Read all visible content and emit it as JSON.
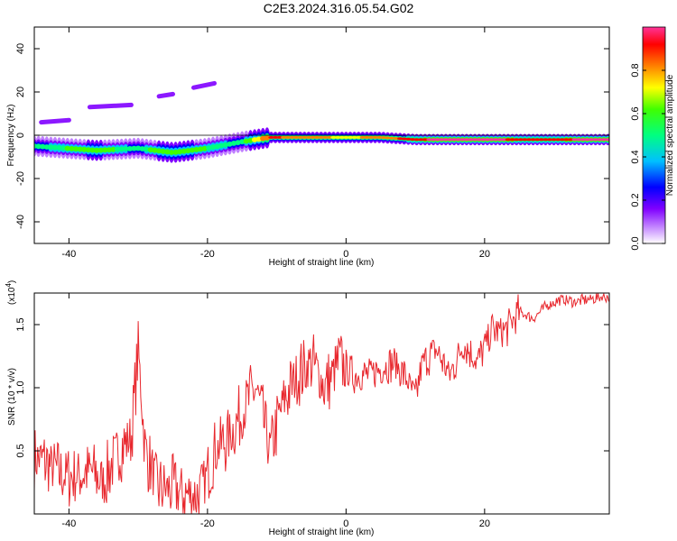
{
  "title": "C2E3.2024.316.05.54.G02",
  "chart_data": [
    {
      "type": "heatmap",
      "xlabel": "Height of straight line (km)",
      "ylabel": "Frequency (Hz)",
      "xlim": [
        -45,
        38
      ],
      "ylim": [
        -50,
        50
      ],
      "xticks": [
        -40,
        -20,
        0,
        20
      ],
      "yticks": [
        40,
        20,
        0,
        -20,
        -40
      ],
      "colorbar": {
        "label": "Normalized spectral amplitude",
        "range": [
          0,
          1
        ],
        "ticks": [
          "0.0",
          "0.2",
          "0.4",
          "0.6",
          "0.8"
        ],
        "colors": [
          "#ffffff",
          "#a020f0",
          "#0000ff",
          "#00ffff",
          "#00ff00",
          "#ffff00",
          "#ffa500",
          "#ff0000",
          "#ff3399"
        ]
      },
      "ridge": {
        "x": [
          -45,
          -36,
          -30,
          -25,
          -20,
          -15,
          -11,
          -5,
          0,
          5,
          10,
          15,
          20,
          25,
          30,
          37
        ],
        "frequency": [
          -5,
          -7,
          -6,
          -8,
          -6,
          -3,
          -1,
          -1,
          -1,
          -1,
          -2,
          -2,
          -2,
          -2,
          -2,
          -2
        ],
        "amplitude": [
          0.45,
          0.55,
          0.45,
          0.6,
          0.5,
          0.45,
          0.85,
          0.75,
          0.7,
          0.75,
          0.9,
          0.95,
          0.95,
          0.9,
          0.9,
          0.95
        ]
      },
      "harmonics": [
        {
          "x": [
            -44,
            -40
          ],
          "frequency": [
            6,
            7
          ],
          "amplitude": 0.15
        },
        {
          "x": [
            -37,
            -31
          ],
          "frequency": [
            13,
            14
          ],
          "amplitude": 0.1
        },
        {
          "x": [
            -27,
            -25
          ],
          "frequency": [
            18,
            19
          ],
          "amplitude": 0.1
        },
        {
          "x": [
            -22,
            -19
          ],
          "frequency": [
            22,
            24
          ],
          "amplitude": 0.12
        }
      ]
    },
    {
      "type": "line",
      "xlabel": "Height of straight line (km)",
      "ylabel": "SNR (10 * v/v)",
      "ylabel_multiplier": "(x10",
      "ylabel_multiplier_exp": "4",
      "ylabel_multiplier_close": ")",
      "xlim": [
        -45,
        38
      ],
      "ylim": [
        0,
        1.75
      ],
      "xticks": [
        -40,
        -20,
        0,
        20
      ],
      "yticks": [
        0.5,
        1.0,
        1.5
      ],
      "series": [
        {
          "color": "#e8282e",
          "x": [
            -45,
            -43,
            -41,
            -39,
            -37,
            -35,
            -33,
            -31,
            -30,
            -29,
            -27,
            -25,
            -23,
            -21,
            -19,
            -17,
            -15,
            -13,
            -11,
            -9,
            -7,
            -5,
            -3,
            -1,
            1,
            3,
            5,
            7,
            9,
            10,
            11,
            13,
            15,
            17,
            19,
            21,
            23,
            25,
            27,
            29,
            31,
            33,
            35,
            37,
            38
          ],
          "y": [
            0.45,
            0.4,
            0.3,
            0.3,
            0.35,
            0.25,
            0.5,
            0.6,
            1.3,
            0.5,
            0.2,
            0.2,
            0.15,
            0.15,
            0.5,
            0.6,
            0.8,
            1.0,
            0.5,
            0.9,
            1.1,
            1.2,
            1.0,
            1.2,
            1.1,
            1.1,
            1.15,
            1.2,
            1.05,
            0.9,
            1.2,
            1.3,
            1.1,
            1.35,
            1.2,
            1.45,
            1.45,
            1.6,
            1.55,
            1.65,
            1.7,
            1.68,
            1.7,
            1.72,
            1.72
          ]
        }
      ]
    }
  ]
}
